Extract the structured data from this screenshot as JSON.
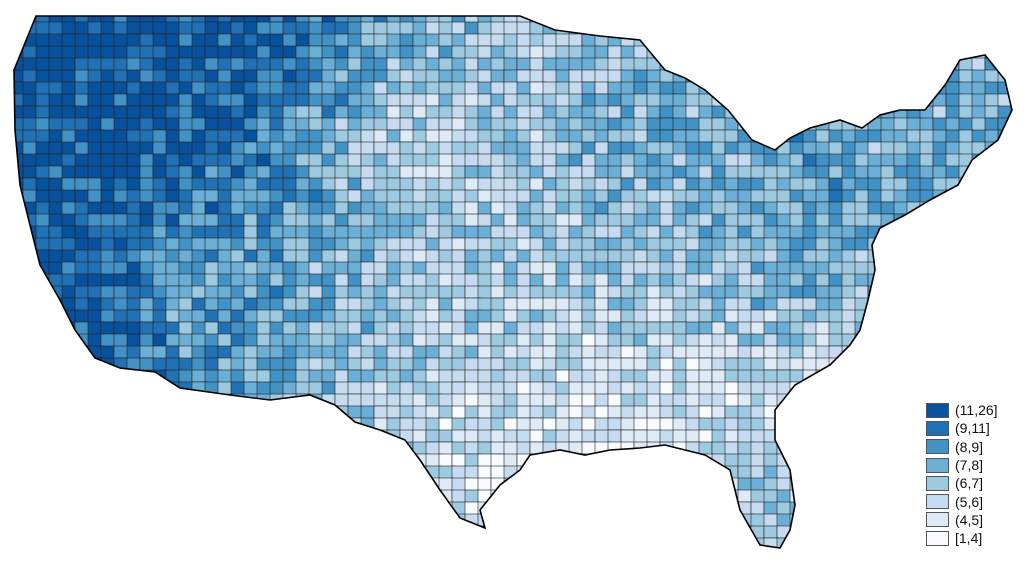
{
  "legend": {
    "items": [
      {
        "label": "(11,26]",
        "color": "#08519c"
      },
      {
        "label": "(9,11]",
        "color": "#2171b5"
      },
      {
        "label": "(8,9]",
        "color": "#4292c6"
      },
      {
        "label": "(7,8]",
        "color": "#6baed6"
      },
      {
        "label": "(6,7]",
        "color": "#9ecae1"
      },
      {
        "label": "(5,6]",
        "color": "#c6dbef"
      },
      {
        "label": "(4,5]",
        "color": "#deebf7"
      },
      {
        "label": "[1,4]",
        "color": "#f7fbff"
      }
    ]
  }
}
